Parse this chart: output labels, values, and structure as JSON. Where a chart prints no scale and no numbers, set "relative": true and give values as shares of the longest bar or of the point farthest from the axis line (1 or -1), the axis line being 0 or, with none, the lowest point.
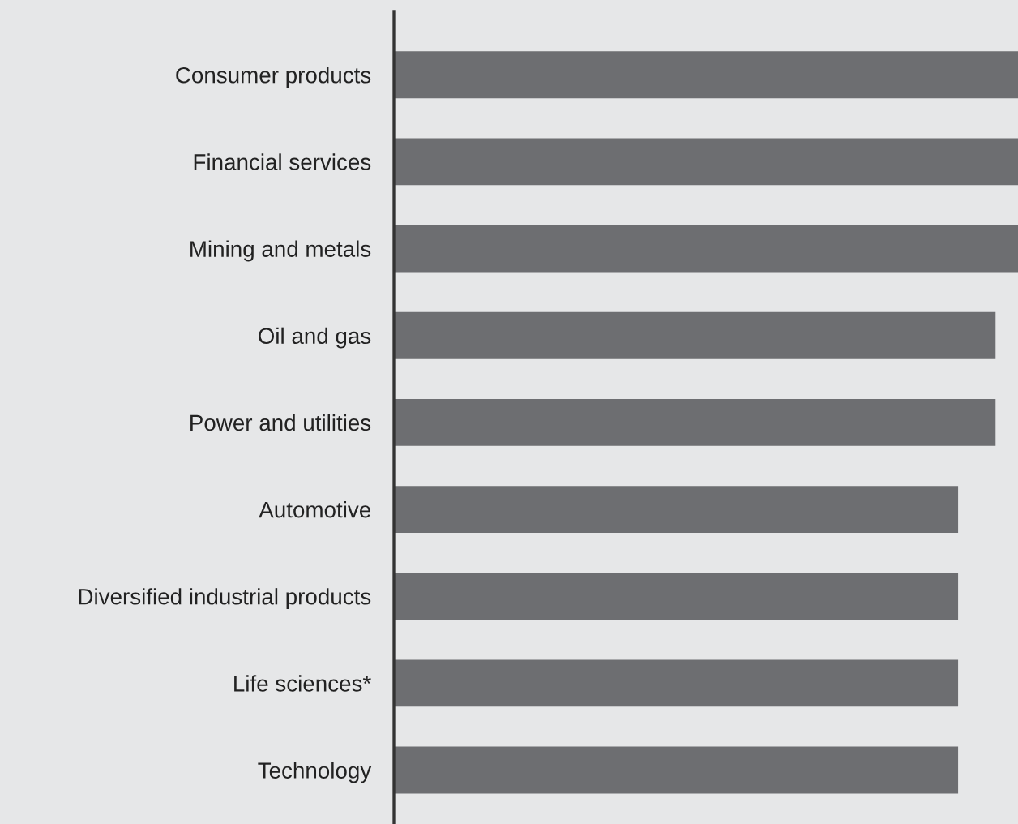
{
  "chart_data": {
    "type": "bar",
    "orientation": "horizontal",
    "relative": true,
    "categories": [
      "Consumer products",
      "Financial services",
      "Mining and metals",
      "Oil and gas",
      "Power and utilities",
      "Automotive",
      "Diversified industrial products",
      "Life sciences*",
      "Technology"
    ],
    "values": [
      1,
      1,
      1,
      0.964,
      0.964,
      0.904,
      0.904,
      0.904,
      0.904
    ],
    "color": "#6d6e71",
    "grid": false,
    "legend": false
  }
}
